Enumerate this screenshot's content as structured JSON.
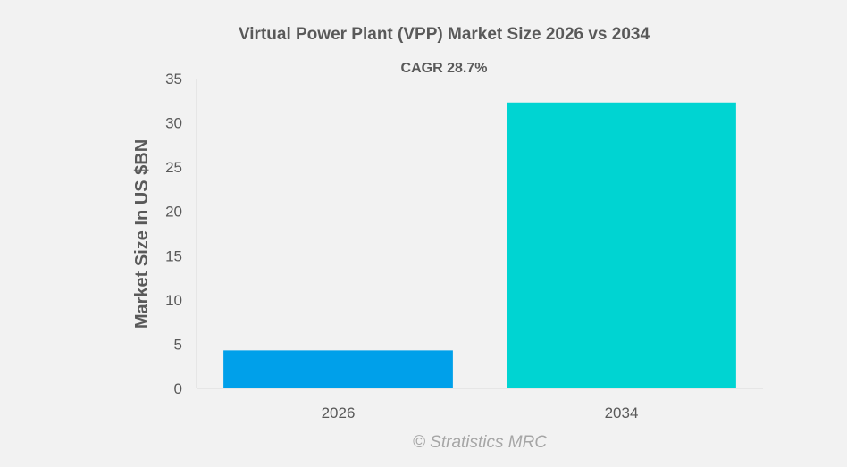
{
  "chart_data": {
    "type": "bar",
    "title": "Virtual Power Plant (VPP) Market Size 2026 vs 2034",
    "subtitle": "CAGR 28.7%",
    "xlabel": "",
    "ylabel": "Market Size In US $BN",
    "categories": [
      "2026",
      "2034"
    ],
    "values": [
      4.3,
      32.3
    ],
    "ylim": [
      0,
      35
    ],
    "yticks": [
      0,
      5,
      10,
      15,
      20,
      25,
      30,
      35
    ],
    "grid": false,
    "colors": [
      "#00a0ea",
      "#00d4d2"
    ]
  },
  "watermark": "© Stratistics MRC"
}
